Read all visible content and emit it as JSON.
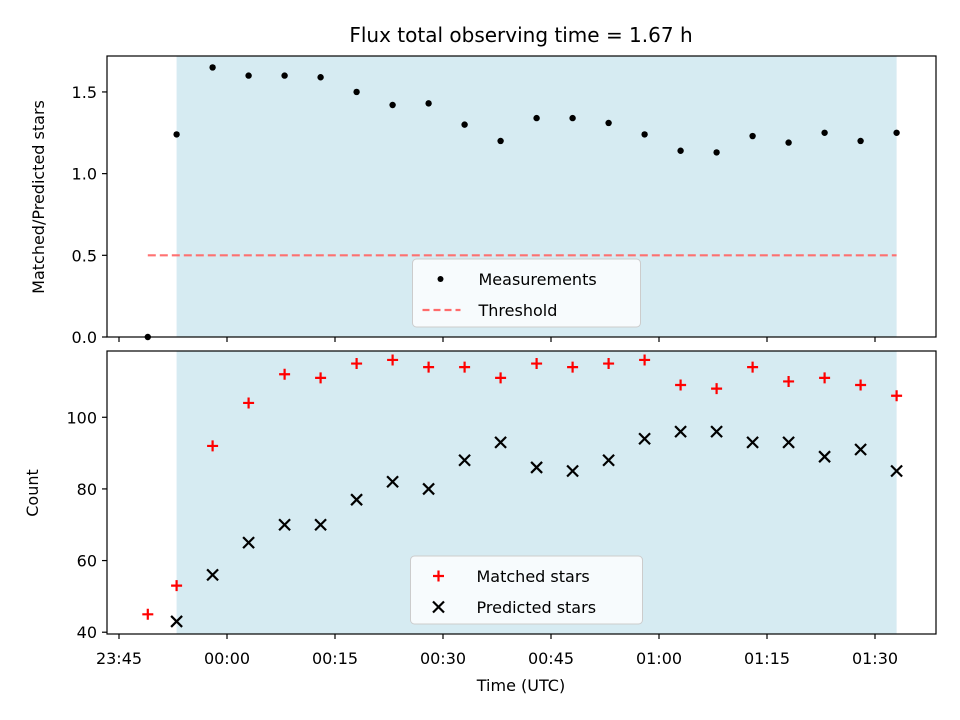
{
  "chart_data": {
    "title": "Flux total observing time = 1.67 h",
    "xlabel": "Time (UTC)",
    "x_ticks": [
      "23:45",
      "00:00",
      "00:15",
      "00:30",
      "00:45",
      "01:00",
      "01:15",
      "01:30"
    ],
    "shaded_region": {
      "x_start": "23:53",
      "x_end": "01:33",
      "color": "#add8e6",
      "opacity": 0.5
    },
    "x": [
      "23:49",
      "23:53",
      "23:58",
      "00:03",
      "00:08",
      "00:13",
      "00:18",
      "00:23",
      "00:28",
      "00:33",
      "00:38",
      "00:43",
      "00:48",
      "00:53",
      "00:58",
      "01:03",
      "01:08",
      "01:13",
      "01:18",
      "01:23",
      "01:28",
      "01:33"
    ],
    "panels": [
      {
        "type": "scatter",
        "ylabel": "Matched/Predicted stars",
        "ylim": [
          0,
          1.72
        ],
        "y_ticks": [
          "0.0",
          "0.5",
          "1.0",
          "1.5"
        ],
        "y_tick_values": [
          0,
          0.5,
          1.0,
          1.5
        ],
        "series": [
          {
            "name": "Measurements",
            "marker": "dot",
            "color": "#000000",
            "values": [
              0.0,
              1.24,
              1.65,
              1.6,
              1.6,
              1.59,
              1.5,
              1.42,
              1.43,
              1.3,
              1.2,
              1.34,
              1.34,
              1.31,
              1.24,
              1.14,
              1.13,
              1.23,
              1.19,
              1.25,
              1.2,
              1.25
            ]
          }
        ],
        "threshold": {
          "name": "Threshold",
          "value": 0.5,
          "color": "#ff6b6b",
          "style": "dashed"
        },
        "legend_position": "lower-center"
      },
      {
        "type": "scatter",
        "ylabel": "Count",
        "ylim": [
          39.5,
          118.5
        ],
        "y_ticks": [
          "40",
          "60",
          "80",
          "100"
        ],
        "y_tick_values": [
          40,
          60,
          80,
          100
        ],
        "series": [
          {
            "name": "Matched stars",
            "marker": "plus",
            "color": "#ff0000",
            "values": [
              45,
              53,
              92,
              104,
              112,
              111,
              115,
              116,
              114,
              114,
              111,
              115,
              114,
              115,
              116,
              109,
              108,
              114,
              110,
              111,
              109,
              106
            ]
          },
          {
            "name": "Predicted stars",
            "marker": "x",
            "color": "#000000",
            "values": [
              null,
              43,
              56,
              65,
              70,
              70,
              77,
              82,
              80,
              88,
              93,
              86,
              85,
              88,
              94,
              96,
              96,
              93,
              93,
              89,
              91,
              85
            ]
          }
        ],
        "legend_position": "lower-center"
      }
    ]
  }
}
